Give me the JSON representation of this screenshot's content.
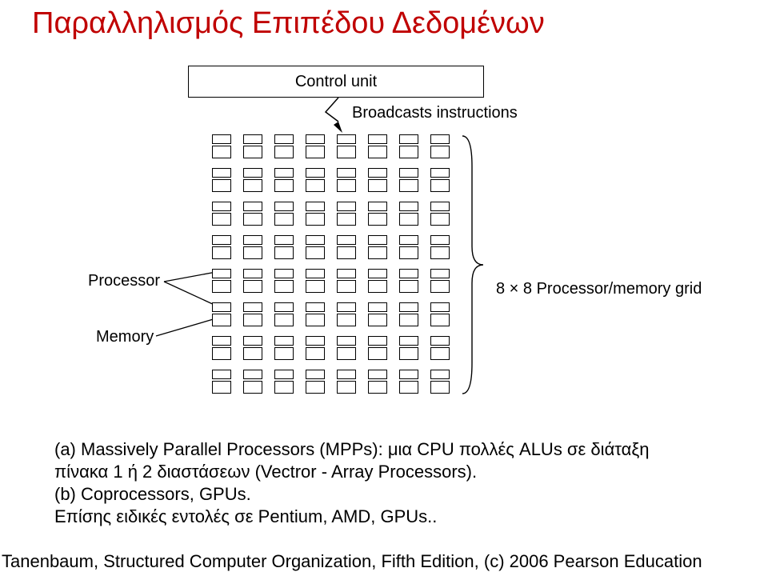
{
  "title": "Παραλληλισμός Επιπέδου Δεδομένων",
  "diagram": {
    "control_unit_label": "Control unit",
    "broadcast_label": "Broadcasts instructions",
    "processor_label": "Processor",
    "memory_label": "Memory",
    "grid_label": "8 × 8 Processor/memory grid",
    "grid_rows": 8,
    "grid_cols": 8,
    "colors": {
      "title": "#c00000",
      "line": "#000000",
      "bg": "#ffffff"
    },
    "fontsize": {
      "title": 38,
      "label": 20,
      "caption": 22
    }
  },
  "caption": {
    "line1": "(a) Massively Parallel Processors (MPPs): μια CPU πολλές ALUs σε διάταξη",
    "line2": "πίνακα 1 ή 2 διαστάσεων (Vectror - Array Processors).",
    "line3": "(b) Coprocessors, GPUs.",
    "line4": "Επίσης ειδικές εντολές σε Pentium, AMD, GPUs.."
  },
  "footer": "Tanenbaum, Structured Computer Organization, Fifth Edition, (c) 2006 Pearson Education"
}
